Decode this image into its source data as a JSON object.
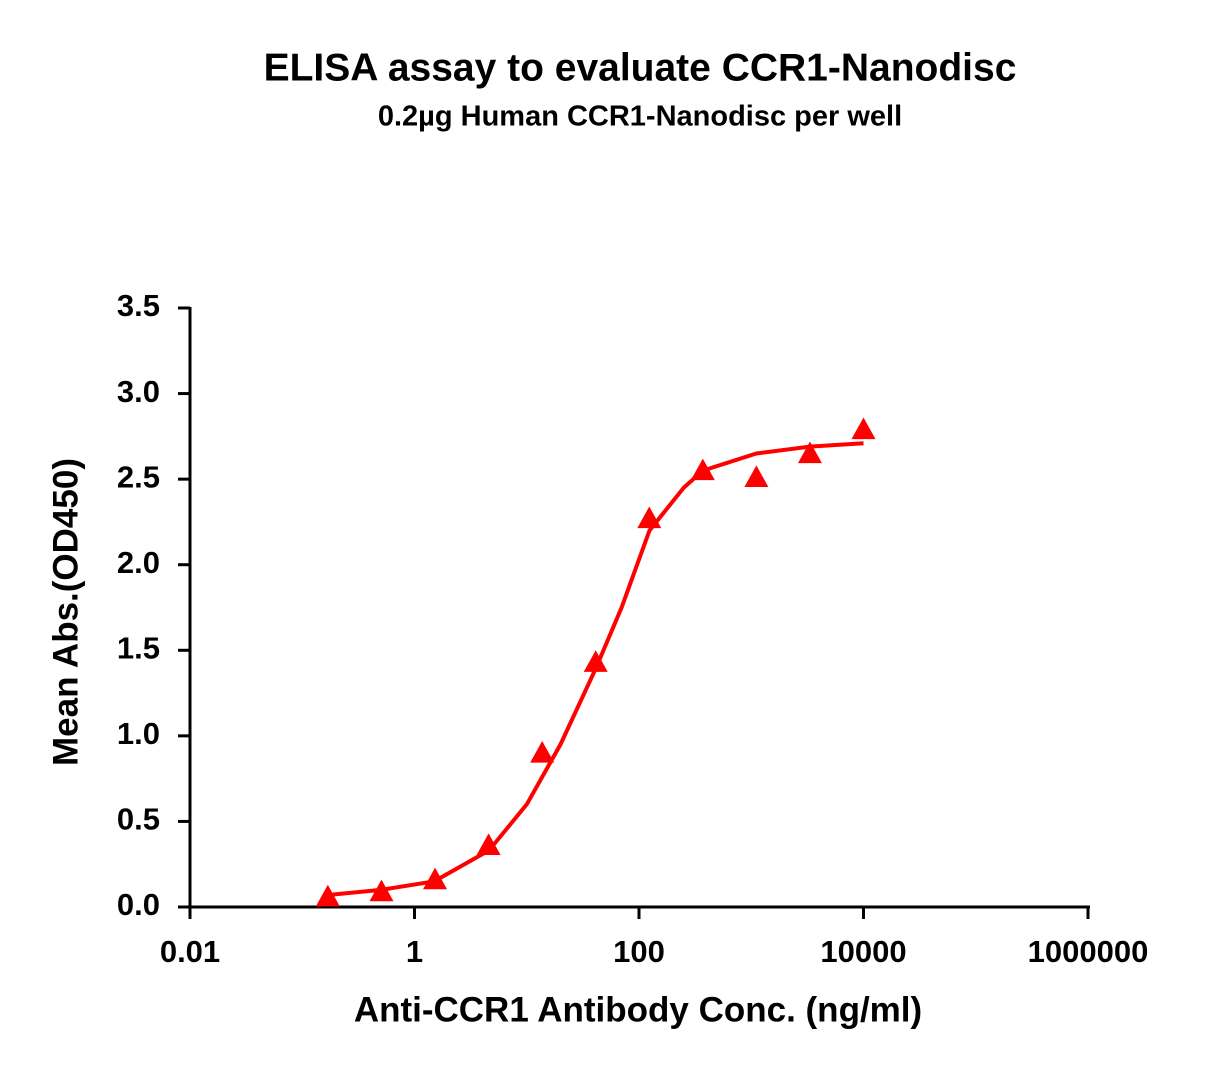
{
  "chart_data": {
    "type": "scatter",
    "title": "ELISA assay to evaluate CCR1-Nanodisc",
    "subtitle": "0.2µg Human CCR1-Nanodisc per well",
    "x_label": "Anti-CCR1 Antibody Conc. (ng/ml)",
    "y_label": "Mean Abs.(OD450)",
    "x_scale": "log",
    "xlim": [
      0.01,
      1000000
    ],
    "xticks": [
      0.01,
      1,
      100,
      10000,
      1000000
    ],
    "ylim": [
      0,
      3.5
    ],
    "yticks": [
      {
        "value": 0,
        "label": "0.0"
      },
      0.5,
      {
        "value": 1,
        "label": "1.0"
      },
      1.5,
      {
        "value": 2,
        "label": "2.0"
      },
      2.5,
      {
        "value": 3,
        "label": "3.0"
      },
      3.5
    ],
    "series": [
      {
        "marker": "triangle",
        "color": "#ff0000",
        "x": [
          0.169,
          0.508,
          1.524,
          4.572,
          13.72,
          41.15,
          123.5,
          370.4,
          1111.1,
          3333.3,
          10000
        ],
        "values": [
          0.06,
          0.09,
          0.16,
          0.36,
          0.9,
          1.43,
          2.27,
          2.55,
          2.51,
          2.65,
          2.79
        ]
      },
      {
        "marker": "line",
        "color": "#ff0000",
        "x": [
          0.17,
          0.5,
          1.5,
          4.6,
          10,
          20,
          41,
          70,
          124,
          250,
          370,
          1111,
          3333,
          10000
        ],
        "values": [
          0.07,
          0.1,
          0.15,
          0.33,
          0.6,
          0.95,
          1.39,
          1.75,
          2.2,
          2.45,
          2.55,
          2.65,
          2.69,
          2.71
        ]
      }
    ]
  }
}
